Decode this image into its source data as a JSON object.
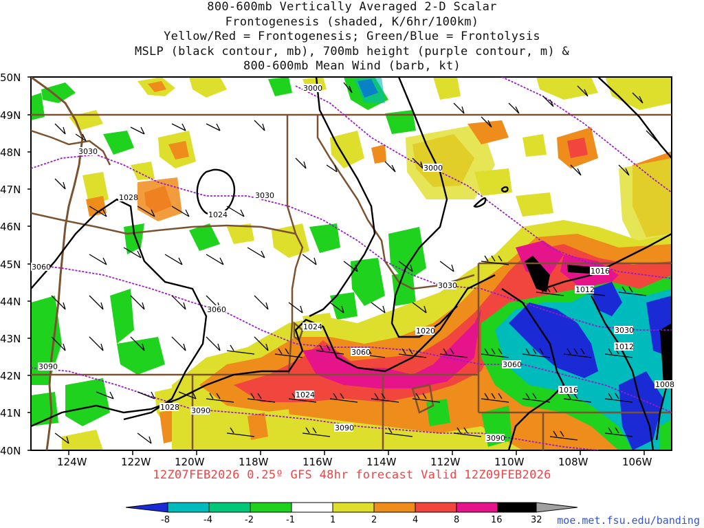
{
  "title": {
    "lines": [
      "800-600mb Vertically Averaged 2-D Scalar",
      "Frontogenesis (shaded, K/6hr/100km)",
      "Yellow/Red = Frontogenesis;  Green/Blue = Frontolysis",
      "MSLP (black contour, mb), 700mb height (purple contour, m) &",
      "800-600mb Mean Wind (barb, kt)"
    ]
  },
  "map": {
    "lat_labels": [
      "50N",
      "49N",
      "48N",
      "47N",
      "46N",
      "45N",
      "44N",
      "43N",
      "42N",
      "41N",
      "40N"
    ],
    "lon_labels": [
      "124W",
      "122W",
      "120W",
      "118W",
      "116W",
      "114W",
      "112W",
      "110W",
      "108W",
      "106W"
    ],
    "lat_range": [
      40,
      50
    ],
    "lon_range": [
      -125.1,
      -105.1
    ],
    "mslp_labels": [
      "1028",
      "1024",
      "1024",
      "1020",
      "1016",
      "1012",
      "1012",
      "1008",
      "1016",
      "1028",
      "1024"
    ],
    "height_labels": [
      "3000",
      "3000",
      "3030",
      "3030",
      "3030",
      "3060",
      "3060",
      "3060",
      "3060",
      "3090",
      "3090",
      "3090",
      "3090",
      "3030"
    ],
    "colors": {
      "border": "#7a5230",
      "mslp": "#000000",
      "height": "#9a1aca",
      "barb": "#000000"
    }
  },
  "valid_time": "12Z07FEB2026 0.25º GFS 48hr forecast Valid 12Z09FEB2026",
  "colorbar": {
    "labels": [
      "-8",
      "-4",
      "-2",
      "-1",
      "1",
      "2",
      "4",
      "8",
      "16",
      "32"
    ],
    "colors": [
      "#1a2bd6",
      "#00bbbb",
      "#00c878",
      "#1ed21e",
      "#ffffff",
      "#dede2c",
      "#ee8c1c",
      "#f0463e",
      "#e6148a",
      "#000000"
    ],
    "under_color": "#1a2bd6",
    "over_color": "#a0a0a0"
  },
  "source_url": "moe.met.fsu.edu/banding"
}
